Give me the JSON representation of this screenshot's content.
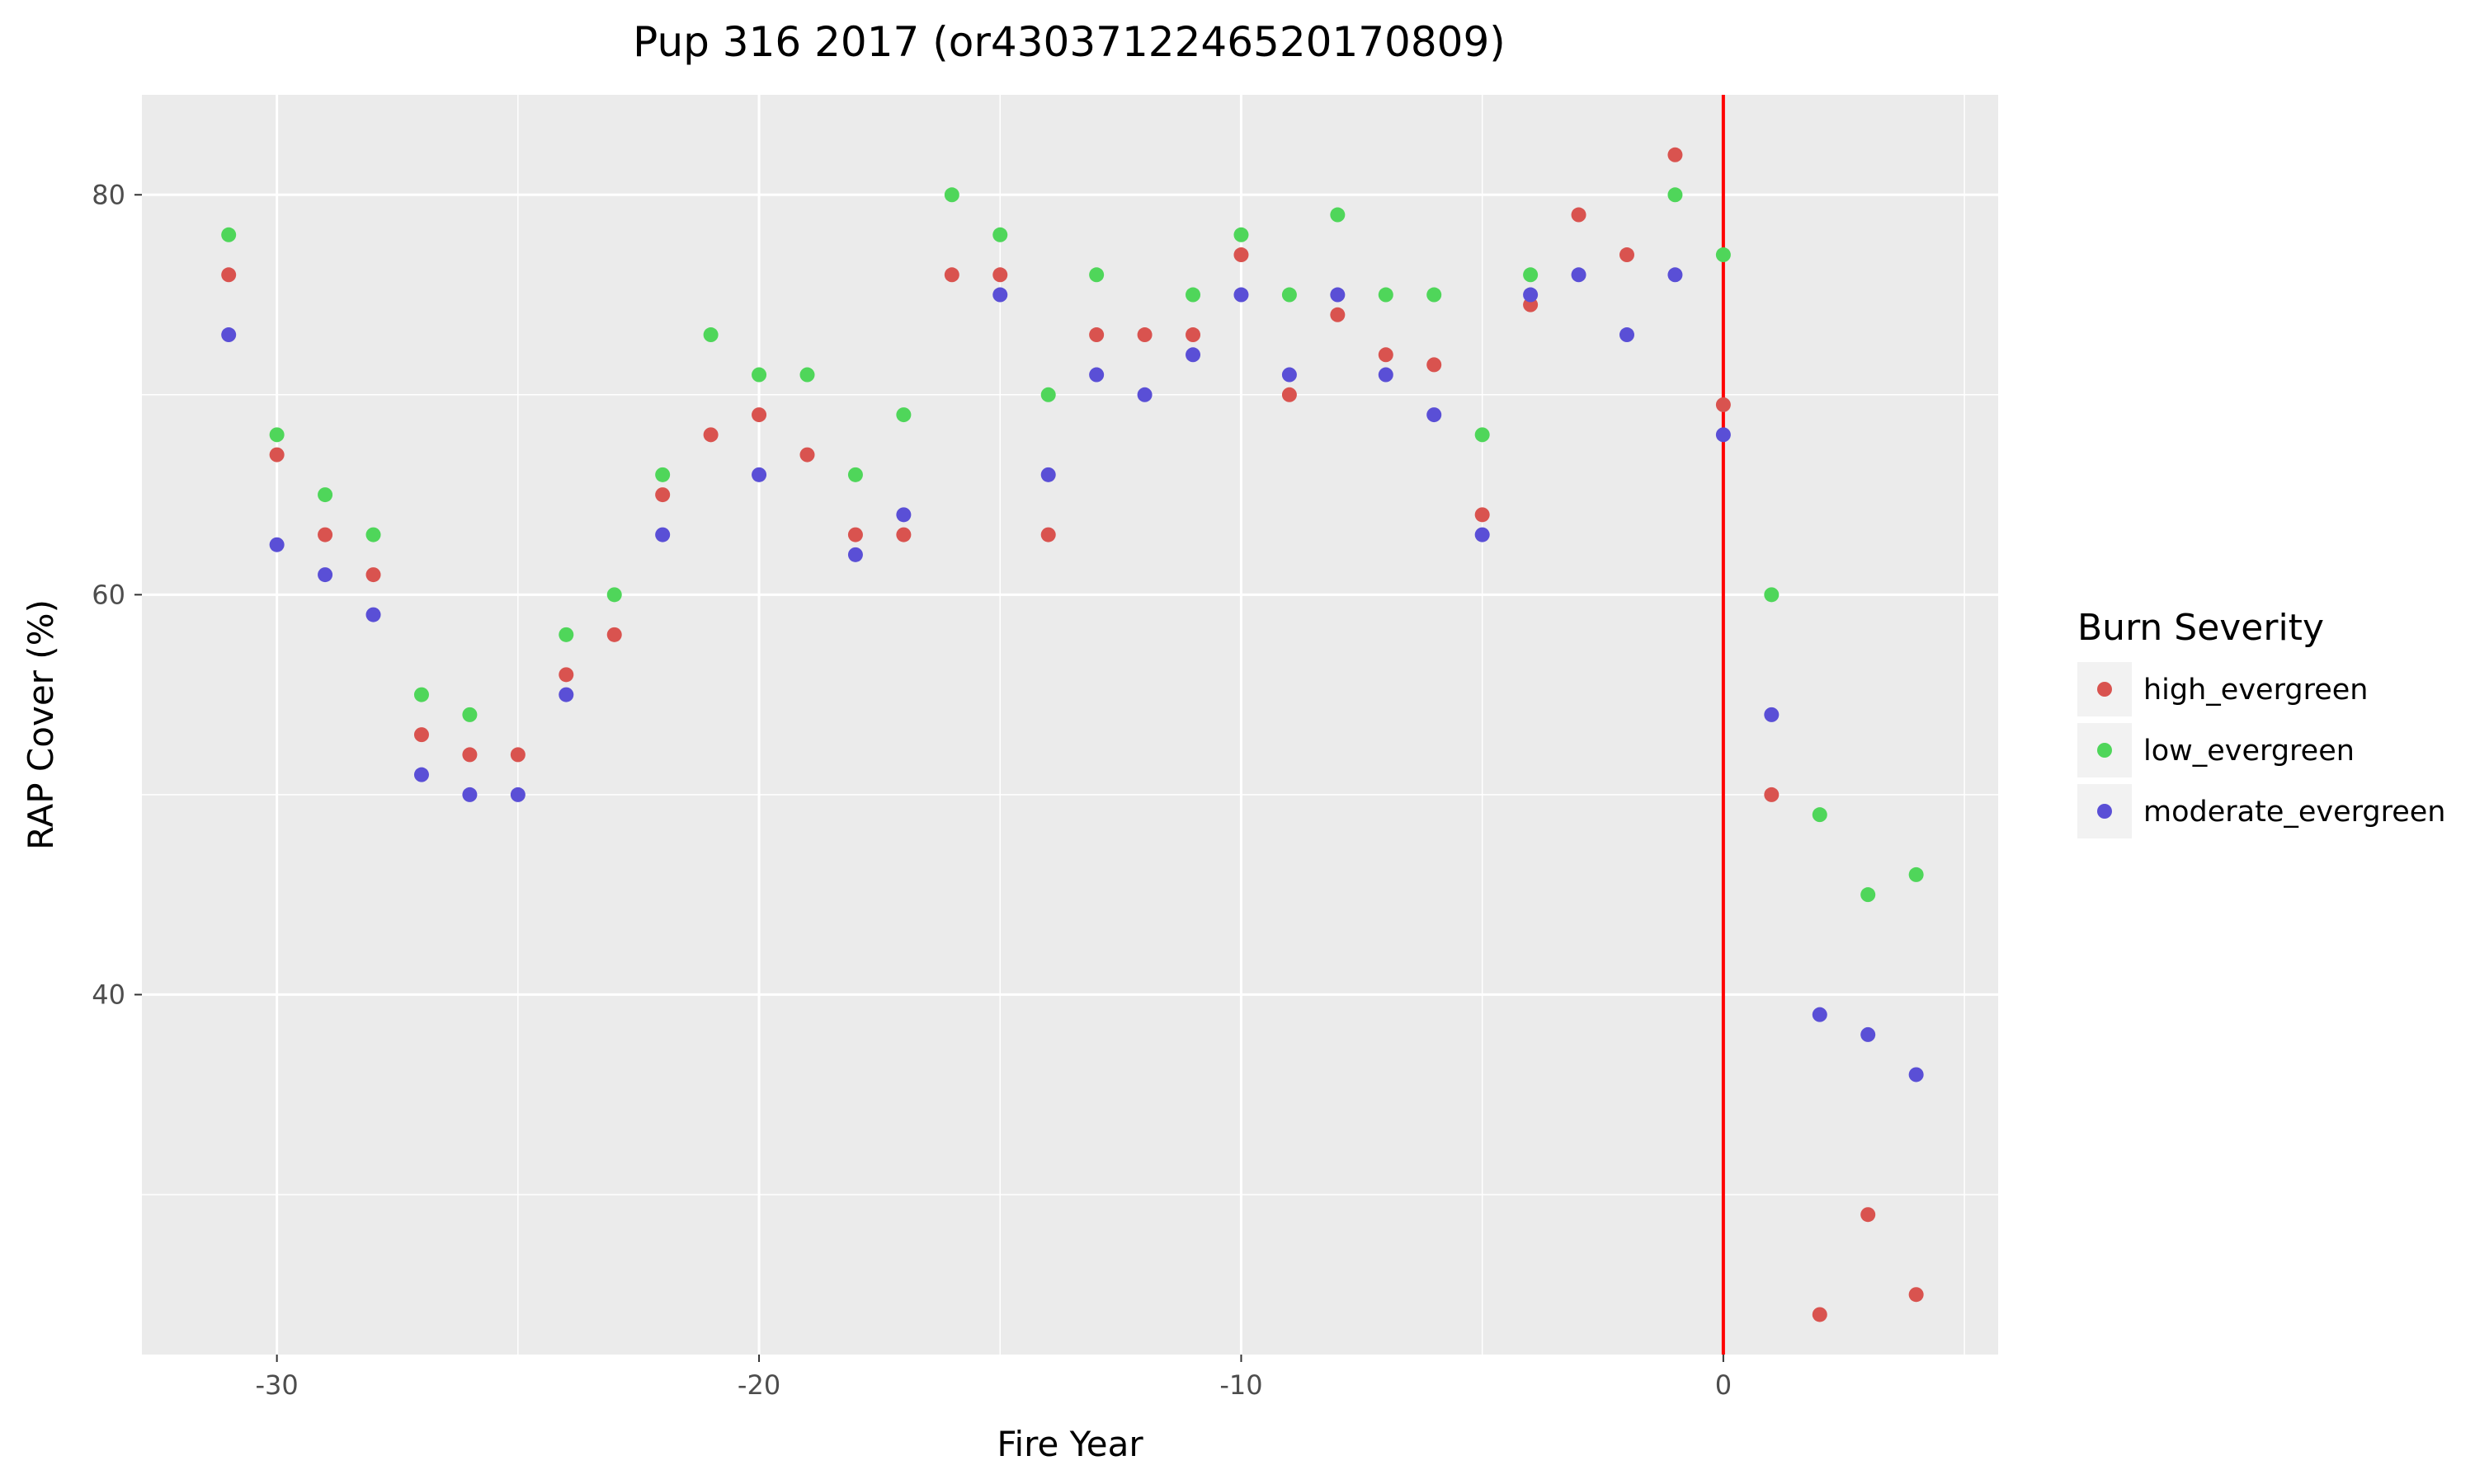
{
  "chart_data": {
    "type": "scatter",
    "title": "Pup 316 2017 (or4303712246520170809)",
    "xlabel": "Fire Year",
    "ylabel": "RAP Cover (%)",
    "xlim": [
      -32.8,
      5.7
    ],
    "ylim": [
      22.0,
      85.0
    ],
    "x_ticks": [
      -30,
      -20,
      -10,
      0
    ],
    "y_ticks": [
      40,
      60,
      80
    ],
    "x_minor_ticks": [
      -25,
      -15,
      -5,
      5
    ],
    "y_minor_ticks": [
      30,
      50,
      70
    ],
    "grid": true,
    "vline": {
      "x": 0,
      "color": "#ff0000"
    },
    "legend": {
      "title": "Burn Severity",
      "placement": "right"
    },
    "series": [
      {
        "name": "high_evergreen",
        "color": "#d9534f",
        "x": [
          -31,
          -30,
          -29,
          -28,
          -27,
          -26,
          -25,
          -24,
          -23,
          -22,
          -21,
          -20,
          -19,
          -18,
          -17,
          -16,
          -15,
          -14,
          -13,
          -12,
          -11,
          -10,
          -9,
          -8,
          -7,
          -6,
          -5,
          -4,
          -3,
          -2,
          -1,
          0,
          1,
          2,
          3,
          4
        ],
        "y": [
          76,
          67,
          63,
          61,
          53,
          52,
          52,
          56,
          58,
          65,
          68,
          69,
          67,
          63,
          63,
          76,
          76,
          63,
          73,
          73,
          73,
          77,
          70,
          74,
          72,
          71.5,
          64,
          74.5,
          79,
          77,
          82,
          69.5,
          50,
          24,
          29,
          25
        ]
      },
      {
        "name": "low_evergreen",
        "color": "#4fd65a",
        "x": [
          -31,
          -30,
          -29,
          -28,
          -27,
          -26,
          -24,
          -23,
          -22,
          -21,
          -20,
          -19,
          -18,
          -17,
          -16,
          -15,
          -14,
          -13,
          -11,
          -10,
          -9,
          -8,
          -7,
          -6,
          -5,
          -4,
          -1,
          0,
          1,
          2,
          3,
          4
        ],
        "y": [
          78,
          68,
          65,
          63,
          55,
          54,
          58,
          60,
          66,
          73,
          71,
          71,
          66,
          69,
          80,
          78,
          70,
          76,
          75,
          78,
          75,
          79,
          75,
          75,
          68,
          76,
          80,
          77,
          60,
          49,
          45,
          46
        ]
      },
      {
        "name": "moderate_evergreen",
        "color": "#5a4fd6",
        "x": [
          -31,
          -30,
          -29,
          -28,
          -27,
          -26,
          -25,
          -24,
          -22,
          -20,
          -18,
          -17,
          -15,
          -14,
          -13,
          -12,
          -11,
          -10,
          -9,
          -8,
          -7,
          -6,
          -5,
          -4,
          -3,
          -2,
          -1,
          0,
          1,
          2,
          3,
          4
        ],
        "y": [
          73,
          62.5,
          61,
          59,
          51,
          50,
          50,
          55,
          63,
          66,
          62,
          64,
          75,
          66,
          71,
          70,
          72,
          75,
          71,
          75,
          71,
          69,
          63,
          75,
          76,
          73,
          76,
          68,
          54,
          39,
          38,
          36
        ]
      }
    ]
  }
}
